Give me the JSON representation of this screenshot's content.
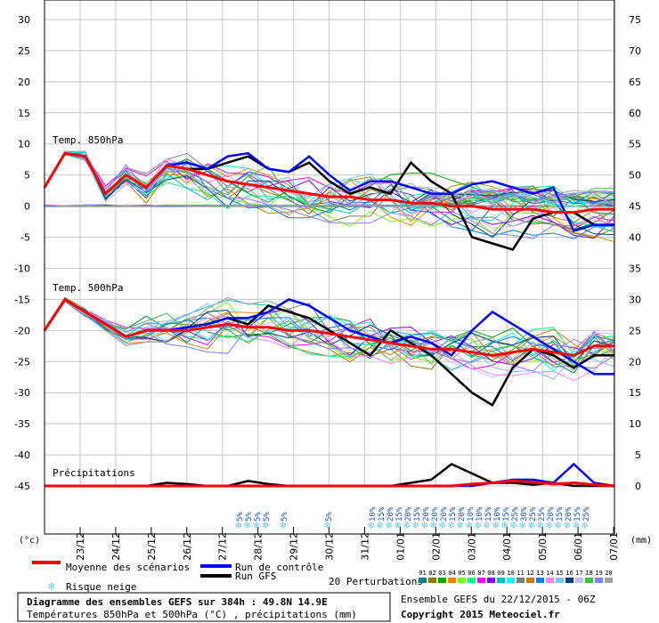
{
  "chart_data": {
    "type": "line",
    "title": "Diagramme des ensembles GEFS sur 384h : 49.8N 14.9E",
    "subtitle": "Températures 850hPa et 500hPa (°C) , précipitations (mm)",
    "run_info": "Ensemble GEFS du 22/12/2015 - 06Z",
    "copyright": "Copyright 2015 Meteociel.fr",
    "left_unit": "(°c)",
    "right_unit": "(mm)",
    "left_axis": {
      "ylim": [
        -45,
        30
      ],
      "ticks": [
        "30",
        "25",
        "20",
        "15",
        "10",
        "5",
        "0",
        "-5",
        "-10",
        "-15",
        "-20",
        "-25",
        "-30",
        "-35",
        "-40",
        "-45"
      ]
    },
    "right_axis": {
      "ticks": [
        "75",
        "70",
        "65",
        "60",
        "55",
        "50",
        "45",
        "40",
        "35",
        "30",
        "25",
        "20",
        "15",
        "10",
        "5",
        "0"
      ]
    },
    "x_ticks": [
      "23/12",
      "24/12",
      "25/12",
      "26/12",
      "27/12",
      "28/12",
      "29/12",
      "30/12",
      "31/12",
      "01/01",
      "02/01",
      "03/01",
      "04/01",
      "05/01",
      "06/01",
      "07/01"
    ],
    "panel_labels": {
      "t850": "Temp. 850hPa",
      "t500": "Temp. 500hPa",
      "precip": "Précipitations"
    },
    "legend": {
      "mean": "Moyenne des scénarios",
      "control": "Run de contrôle",
      "gfs": "Run GFS",
      "perturbations": "20 Perturbations",
      "snow": "Risque neige"
    },
    "colors": {
      "mean": "#ff0000",
      "control": "#0000ff",
      "gfs": "#000000",
      "perturbations": [
        "#008080",
        "#808000",
        "#00aa00",
        "#ff8000",
        "#80ff00",
        "#00ff80",
        "#ff00ff",
        "#8000ff",
        "#00c0c0",
        "#00ffff",
        "#808080",
        "#c08000",
        "#0080ff",
        "#ff80ff",
        "#80c0ff",
        "#004080",
        "#c0c0ff",
        "#40c040",
        "#8080ff",
        "#a0a0a0"
      ],
      "snow": "#6ec8f0"
    },
    "perturbation_ids": [
      "01",
      "02",
      "03",
      "04",
      "05",
      "06",
      "07",
      "08",
      "09",
      "10",
      "11",
      "12",
      "13",
      "14",
      "15",
      "16",
      "17",
      "18",
      "19",
      "20"
    ],
    "snow_risk": [
      {
        "date": "27/12",
        "label": "5%"
      },
      {
        "date": "28/12",
        "label": "5%"
      },
      {
        "date": "28/12",
        "label": "5%"
      },
      {
        "date": "28/12",
        "label": "5%"
      },
      {
        "date": "29/12",
        "label": "5%"
      },
      {
        "date": "30/12",
        "label": "5%"
      },
      {
        "date": "31/12",
        "label": "10%"
      },
      {
        "date": "01/01",
        "label": "15%"
      },
      {
        "date": "01/01",
        "label": "20%"
      },
      {
        "date": "01/01",
        "label": "15%"
      },
      {
        "date": "01/01",
        "label": "20%"
      },
      {
        "date": "02/01",
        "label": "15%"
      },
      {
        "date": "02/01",
        "label": "20%"
      },
      {
        "date": "02/01",
        "label": "20%"
      },
      {
        "date": "02/01",
        "label": "20%"
      },
      {
        "date": "03/01",
        "label": "15%"
      },
      {
        "date": "03/01",
        "label": "20%"
      },
      {
        "date": "03/01",
        "label": "10%"
      },
      {
        "date": "03/01",
        "label": "10%"
      },
      {
        "date": "04/01",
        "label": "15%"
      },
      {
        "date": "04/01",
        "label": "10%"
      },
      {
        "date": "04/01",
        "label": "15%"
      },
      {
        "date": "04/01",
        "label": "25%"
      },
      {
        "date": "05/01",
        "label": "30%"
      },
      {
        "date": "05/01",
        "label": "25%"
      },
      {
        "date": "05/01",
        "label": "25%"
      },
      {
        "date": "05/01",
        "label": "20%"
      },
      {
        "date": "06/01",
        "label": "15%"
      },
      {
        "date": "06/01",
        "label": "20%"
      },
      {
        "date": "06/01",
        "label": "15%"
      },
      {
        "date": "06/01",
        "label": "25%"
      }
    ],
    "series": [
      {
        "name": "Moyenne des scénarios",
        "panel": "t850",
        "values": [
          3,
          8.5,
          8,
          2,
          5,
          3,
          6.5,
          6,
          5,
          4,
          3.5,
          3,
          2.5,
          2,
          1.5,
          1.5,
          1,
          1,
          0.5,
          0.5,
          0,
          0,
          -0.5,
          -0.5,
          -0.5,
          -1,
          -1,
          -0.5,
          -0.5
        ]
      },
      {
        "name": "Run de contrôle",
        "panel": "t850",
        "values": [
          3,
          8.5,
          8,
          2,
          5,
          3,
          6.5,
          7,
          6,
          8,
          8.5,
          6,
          5.5,
          8,
          5,
          2.5,
          4,
          4,
          3,
          2,
          2,
          3.5,
          4,
          3,
          2,
          3,
          -4,
          -3,
          -3
        ]
      },
      {
        "name": "Run GFS",
        "panel": "t850",
        "values": [
          3,
          8.5,
          8,
          2,
          5,
          3,
          6.5,
          6,
          6,
          7,
          8,
          6,
          5.5,
          7,
          4,
          2,
          3,
          2,
          7,
          4,
          2,
          -5,
          -6,
          -7,
          -2,
          -1,
          -1,
          -3,
          -3
        ]
      },
      {
        "name": "Moyenne des scénarios",
        "panel": "t500",
        "values": [
          -20,
          -15,
          -17,
          -19,
          -21,
          -20,
          -20,
          -20,
          -19.5,
          -19,
          -19.5,
          -19.5,
          -20,
          -20,
          -20.5,
          -21,
          -21.5,
          -22,
          -22.5,
          -23,
          -23,
          -23.5,
          -24,
          -23.5,
          -23,
          -23.5,
          -24,
          -22.5,
          -22.5
        ]
      },
      {
        "name": "Run de contrôle",
        "panel": "t500",
        "values": [
          -20,
          -15,
          -17,
          -19,
          -21,
          -20,
          -20,
          -19.5,
          -19,
          -18,
          -18,
          -17,
          -15,
          -16,
          -18,
          -20,
          -21,
          -22,
          -21,
          -22,
          -24,
          -20,
          -17,
          -19,
          -21,
          -23,
          -25,
          -27,
          -27
        ]
      },
      {
        "name": "Run GFS",
        "panel": "t500",
        "values": [
          -20,
          -15,
          -17,
          -19,
          -21,
          -20,
          -20,
          -19.5,
          -19,
          -18,
          -19,
          -16,
          -17,
          -18,
          -20,
          -22,
          -24,
          -20,
          -22,
          -24,
          -27,
          -30,
          -32,
          -26,
          -23,
          -24,
          -26,
          -24,
          -24
        ]
      },
      {
        "name": "Moyenne des scénarios",
        "panel": "precip",
        "values": [
          0,
          0,
          0,
          0,
          0,
          0,
          0,
          0,
          0,
          0,
          0,
          0,
          0,
          0,
          0,
          0,
          0,
          0,
          0,
          0,
          0,
          0.3,
          0.5,
          0.8,
          0.6,
          0.3,
          0.5,
          0.2,
          0
        ]
      },
      {
        "name": "Run de contrôle",
        "panel": "precip",
        "values": [
          0,
          0,
          0,
          0,
          0,
          0,
          0,
          0,
          0,
          0,
          0,
          0,
          0,
          0,
          0,
          0,
          0,
          0,
          0,
          0,
          0,
          0,
          0.5,
          1,
          1,
          0.5,
          3.5,
          0.5,
          0
        ]
      },
      {
        "name": "Run GFS",
        "panel": "precip",
        "values": [
          0,
          0,
          0,
          0,
          0,
          0,
          0.5,
          0.3,
          0,
          0,
          0.8,
          0.3,
          0,
          0,
          0,
          0,
          0,
          0,
          0.5,
          1,
          3.5,
          2,
          0.5,
          0.5,
          0.2,
          0.5,
          0,
          0,
          0
        ]
      }
    ]
  }
}
